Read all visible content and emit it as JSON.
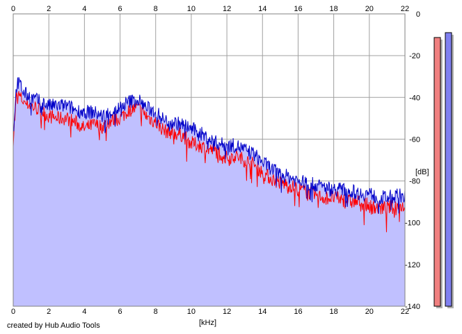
{
  "credit": "created by Hub Audio Tools",
  "colors": {
    "background": "#ffffff",
    "grid": "#a0a0a0",
    "fill": "#c0c0ff",
    "left_channel": "#ff0000",
    "right_channel": "#0000c8",
    "meter_left": "#f08080",
    "meter_right": "#8080f0"
  },
  "chart_data": {
    "type": "line",
    "title": "",
    "xlabel": "[kHz]",
    "ylabel": "[dB]",
    "xlim": [
      0,
      22
    ],
    "ylim": [
      -140,
      0
    ],
    "x_ticks": [
      "0",
      "2",
      "4",
      "6",
      "8",
      "10",
      "12",
      "14",
      "16",
      "18",
      "20",
      "22"
    ],
    "y_ticks": [
      "0",
      "-20",
      "-40",
      "-60",
      "-80",
      "-100",
      "-120",
      "-140"
    ],
    "grid": true,
    "x": [
      0,
      0.2,
      0.4,
      0.6,
      1,
      1.5,
      2,
      2.5,
      3,
      3.5,
      4,
      4.5,
      5,
      5.5,
      6,
      6.5,
      7,
      7.5,
      8,
      8.5,
      9,
      9.5,
      10,
      10.5,
      11,
      11.5,
      12,
      12.5,
      13,
      13.5,
      14,
      14.5,
      15,
      15.5,
      16,
      16.5,
      17,
      17.5,
      18,
      18.5,
      19,
      19.5,
      20,
      20.5,
      21,
      21.5,
      22
    ],
    "series": [
      {
        "values": [
          -60,
          -38,
          -40,
          -42,
          -44,
          -46,
          -49,
          -50,
          -50,
          -52,
          -55,
          -53,
          -54,
          -51,
          -50,
          -46,
          -45,
          -49,
          -52,
          -56,
          -57,
          -58,
          -62,
          -63,
          -65,
          -66,
          -69,
          -68,
          -70,
          -72,
          -76,
          -79,
          -81,
          -82,
          -84,
          -85,
          -87,
          -88,
          -88,
          -89,
          -90,
          -90,
          -92,
          -93,
          -93,
          -92,
          -92
        ]
      },
      {
        "values": [
          -57,
          -33,
          -34,
          -38,
          -40,
          -42,
          -44,
          -44,
          -44,
          -46,
          -47,
          -47,
          -49,
          -47,
          -45,
          -42,
          -41,
          -45,
          -47,
          -51,
          -52,
          -53,
          -55,
          -57,
          -60,
          -62,
          -63,
          -63,
          -65,
          -67,
          -71,
          -74,
          -77,
          -78,
          -80,
          -81,
          -82,
          -83,
          -84,
          -84,
          -85,
          -86,
          -86,
          -88,
          -88,
          -87,
          -87
        ]
      }
    ],
    "meters": [
      -140,
      -140
    ]
  }
}
